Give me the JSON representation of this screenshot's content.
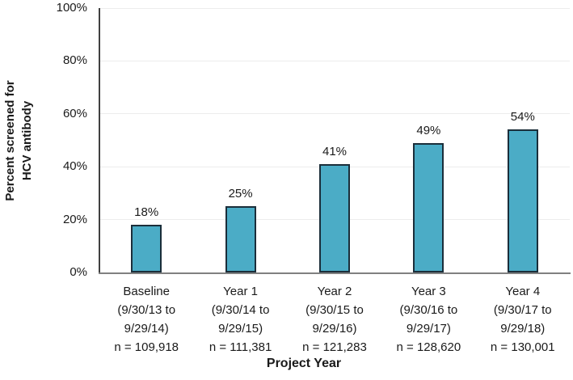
{
  "chart_data": {
    "type": "bar",
    "title": "",
    "xlabel": "Project Year",
    "ylabel": "Percent screened for HCV antibody",
    "ylabel_lines": [
      "Percent screened for",
      "HCV antibody"
    ],
    "ylim": [
      0,
      100
    ],
    "ytick_step": 20,
    "ytick_labels": [
      "0%",
      "20%",
      "40%",
      "60%",
      "80%",
      "100%"
    ],
    "grid": "horizontal",
    "legend_position": "none",
    "categories": [
      {
        "lines": [
          "Baseline",
          "(9/30/13 to",
          "9/29/14)",
          "n = 109,918"
        ],
        "label": "Baseline",
        "period": "9/30/13 to 9/29/14",
        "n": "109,918"
      },
      {
        "lines": [
          "Year 1",
          "(9/30/14 to",
          "9/29/15)",
          "n = 111,381"
        ],
        "label": "Year 1",
        "period": "9/30/14 to 9/29/15",
        "n": "111,381"
      },
      {
        "lines": [
          "Year 2",
          "(9/30/15 to",
          "9/29/16)",
          "n = 121,283"
        ],
        "label": "Year 2",
        "period": "9/30/15 to 9/29/16",
        "n": "121,283"
      },
      {
        "lines": [
          "Year 3",
          "(9/30/16 to",
          "9/29/17)",
          "n = 128,620"
        ],
        "label": "Year 3",
        "period": "9/30/16 to 9/29/17",
        "n": "128,620"
      },
      {
        "lines": [
          "Year 4",
          "(9/30/17 to",
          "9/29/18)",
          "n = 130,001"
        ],
        "label": "Year 4",
        "period": "9/30/17 to 9/29/18",
        "n": "130,001"
      }
    ],
    "values": [
      18,
      25,
      41,
      49,
      54
    ],
    "value_labels": [
      "18%",
      "25%",
      "41%",
      "49%",
      "54%"
    ],
    "colors": {
      "bar_fill": "#4BACC6",
      "bar_border": "#1B2E3A",
      "gridline": "#ECECEC",
      "y_axis_line": "#404040",
      "x_axis_line": "#808080",
      "text": "#1A1A1A",
      "background": "#FFFFFF"
    }
  }
}
